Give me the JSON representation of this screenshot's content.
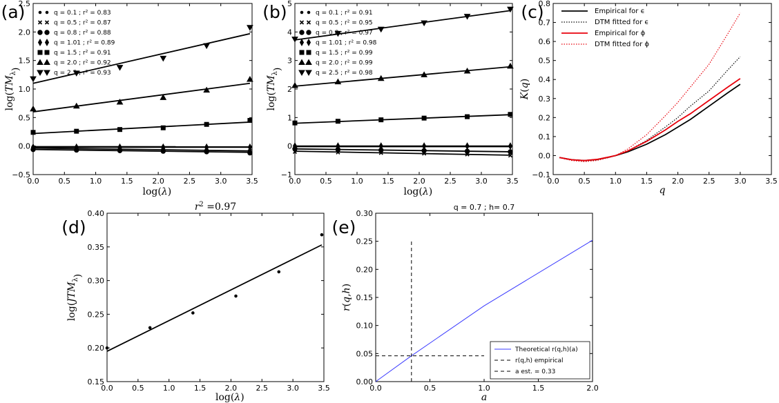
{
  "chart_data": [
    {
      "panel": "(a)",
      "type": "scatter",
      "xlabel": "log(λ)",
      "ylabel": "log(TM_λ)",
      "xlim": [
        0,
        3.5
      ],
      "ylim": [
        -0.5,
        2.5
      ],
      "xticks": [
        "0.0",
        "0.5",
        "1.0",
        "1.5",
        "2.0",
        "2.5",
        "3.0",
        "3.5"
      ],
      "yticks": [
        "−0.5",
        "0.0",
        "0.5",
        "1.0",
        "1.5",
        "2.0",
        "2.5"
      ],
      "x": [
        0,
        0.693,
        1.386,
        2.079,
        2.773,
        3.466
      ],
      "series": [
        {
          "name": "q = 0.1 ;  r² = 0.83",
          "marker": "dot",
          "values": [
            -0.01,
            -0.01,
            -0.01,
            -0.01,
            -0.01,
            -0.01
          ],
          "fit": [
            -0.01,
            -0.012
          ]
        },
        {
          "name": "q = 0.5 ;  r² = 0.87",
          "marker": "x",
          "values": [
            -0.04,
            -0.05,
            -0.06,
            -0.07,
            -0.08,
            -0.09
          ],
          "fit": [
            -0.035,
            -0.085
          ]
        },
        {
          "name": "q = 0.8 ;  r² = 0.88",
          "marker": "circle",
          "values": [
            -0.06,
            -0.07,
            -0.08,
            -0.09,
            -0.1,
            -0.12
          ],
          "fit": [
            -0.06,
            -0.11
          ]
        },
        {
          "name": "q = 1.01 ;  r² = 0.89",
          "marker": "diamond",
          "values": [
            -0.02,
            -0.02,
            -0.02,
            -0.02,
            -0.02,
            -0.02
          ],
          "fit": [
            -0.02,
            -0.02
          ]
        },
        {
          "name": "q = 1.5 ;  r² = 0.91",
          "marker": "square",
          "values": [
            0.24,
            0.26,
            0.29,
            0.32,
            0.38,
            0.45
          ],
          "fit": [
            0.22,
            0.42
          ]
        },
        {
          "name": "q = 2.0 ;  r² = 0.92",
          "marker": "triangle-up",
          "values": [
            0.65,
            0.7,
            0.77,
            0.85,
            0.98,
            1.17
          ],
          "fit": [
            0.6,
            1.1
          ]
        },
        {
          "name": "q = 2.5 ;  r² = 0.93",
          "marker": "triangle-down",
          "values": [
            1.18,
            1.28,
            1.38,
            1.54,
            1.76,
            2.08
          ],
          "fit": [
            1.1,
            1.97
          ]
        }
      ]
    },
    {
      "panel": "(b)",
      "type": "scatter",
      "xlabel": "log(λ)",
      "ylabel": "log(TM_λ)",
      "xlim": [
        0,
        3.5
      ],
      "ylim": [
        -1,
        5
      ],
      "xticks": [
        "0.0",
        "0.5",
        "1.0",
        "1.5",
        "2.0",
        "2.5",
        "3.0",
        "3.5"
      ],
      "yticks": [
        "−1",
        "0",
        "1",
        "2",
        "3",
        "4",
        "5"
      ],
      "x": [
        0,
        0.693,
        1.386,
        2.079,
        2.773,
        3.466
      ],
      "series": [
        {
          "name": "q = 0.1 ;  r² = 0.91",
          "marker": "dot",
          "values": [
            -0.02,
            -0.02,
            -0.02,
            -0.02,
            -0.02,
            -0.02
          ],
          "fit": [
            -0.02,
            -0.02
          ]
        },
        {
          "name": "q = 0.5 ;  r² = 0.95",
          "marker": "x",
          "values": [
            -0.2,
            -0.22,
            -0.24,
            -0.26,
            -0.29,
            -0.33
          ],
          "fit": [
            -0.18,
            -0.32
          ]
        },
        {
          "name": "q = 0.8 ;  r² = 0.97",
          "marker": "circle",
          "values": [
            -0.1,
            -0.12,
            -0.14,
            -0.16,
            -0.18,
            -0.2
          ],
          "fit": [
            -0.1,
            -0.2
          ]
        },
        {
          "name": "q = 1.01 ;  r² = 0.98",
          "marker": "diamond",
          "values": [
            0.0,
            0.0,
            0.0,
            0.0,
            0.0,
            0.0
          ],
          "fit": [
            0.0,
            0.0
          ]
        },
        {
          "name": "q = 1.5 ;  r² = 0.99",
          "marker": "square",
          "values": [
            0.81,
            0.87,
            0.92,
            0.98,
            1.03,
            1.11
          ],
          "fit": [
            0.8,
            1.1
          ]
        },
        {
          "name": "q = 2.0 ;  r² = 0.99",
          "marker": "triangle-up",
          "values": [
            2.12,
            2.25,
            2.37,
            2.5,
            2.63,
            2.8
          ],
          "fit": [
            2.1,
            2.78
          ]
        },
        {
          "name": "q = 2.5 ;  r² = 0.98",
          "marker": "triangle-down",
          "values": [
            3.75,
            3.95,
            4.1,
            4.32,
            4.55,
            4.8
          ],
          "fit": [
            3.72,
            4.75
          ]
        }
      ]
    },
    {
      "panel": "(c)",
      "type": "line",
      "xlabel": "q",
      "ylabel": "K(q)",
      "xlim": [
        0,
        3.5
      ],
      "ylim": [
        -0.1,
        0.8
      ],
      "xticks": [
        "0.0",
        "0.5",
        "1.0",
        "1.5",
        "2.0",
        "2.5",
        "3.0",
        "3.5"
      ],
      "yticks": [
        "−0.1",
        "0.0",
        "0.1",
        "0.2",
        "0.3",
        "0.4",
        "0.5",
        "0.6",
        "0.7",
        "0.8"
      ],
      "x": [
        0.1,
        0.3,
        0.5,
        0.7,
        0.9,
        1.0,
        1.2,
        1.5,
        1.8,
        2.0,
        2.2,
        2.5,
        2.8,
        3.0
      ],
      "series": [
        {
          "name": "Empirical for ϵ",
          "color": "#000000",
          "style": "solid",
          "values": [
            -0.01,
            -0.022,
            -0.026,
            -0.021,
            -0.008,
            0.0,
            0.02,
            0.06,
            0.11,
            0.15,
            0.19,
            0.26,
            0.33,
            0.375
          ]
        },
        {
          "name": "DTM fitted for ϵ",
          "color": "#000000",
          "style": "dotted",
          "values": [
            -0.011,
            -0.025,
            -0.03,
            -0.024,
            -0.009,
            0.0,
            0.025,
            0.08,
            0.15,
            0.2,
            0.26,
            0.34,
            0.45,
            0.52
          ]
        },
        {
          "name": "Empirical for ϕ",
          "color": "#e8000b",
          "style": "solid",
          "values": [
            -0.01,
            -0.022,
            -0.026,
            -0.02,
            -0.007,
            0.0,
            0.025,
            0.075,
            0.135,
            0.18,
            0.22,
            0.29,
            0.36,
            0.405
          ]
        },
        {
          "name": "DTM fitted for ϕ",
          "color": "#e8000b",
          "style": "dotted",
          "values": [
            -0.011,
            -0.026,
            -0.032,
            -0.026,
            -0.01,
            0.0,
            0.035,
            0.11,
            0.21,
            0.28,
            0.36,
            0.48,
            0.64,
            0.75
          ]
        }
      ]
    },
    {
      "panel": "(d)",
      "type": "scatter",
      "title": "r² =0.97",
      "xlabel": "log(λ)",
      "ylabel": "log(JTM_λ)",
      "xlim": [
        0,
        3.5
      ],
      "ylim": [
        0.15,
        0.4
      ],
      "xticks": [
        "0.0",
        "0.5",
        "1.0",
        "1.5",
        "2.0",
        "2.5",
        "3.0",
        "3.5"
      ],
      "yticks": [
        "0.15",
        "0.20",
        "0.25",
        "0.30",
        "0.35",
        "0.40"
      ],
      "x": [
        0,
        0.693,
        1.386,
        2.079,
        2.773,
        3.466
      ],
      "values": [
        0.2,
        0.23,
        0.252,
        0.277,
        0.313,
        0.368
      ],
      "fit": [
        0.195,
        0.353
      ]
    },
    {
      "panel": "(e)",
      "type": "line",
      "title": "q = 0.7 ; h= 0.7",
      "xlabel": "a",
      "ylabel": "r(q,h)",
      "xlim": [
        0,
        2.0
      ],
      "ylim": [
        0,
        0.3
      ],
      "xticks": [
        "0.0",
        "0.5",
        "1.0",
        "1.5",
        "2.0"
      ],
      "yticks": [
        "0.00",
        "0.05",
        "0.10",
        "0.15",
        "0.20",
        "0.25",
        "0.30"
      ],
      "theoretical": {
        "x": [
          0,
          0.33,
          1.0,
          2.0
        ],
        "y": [
          0,
          0.046,
          0.135,
          0.252
        ]
      },
      "r_empirical": 0.046,
      "a_est": 0.33,
      "legend": [
        "Theoretical r(q,h)(a)",
        "r(q,h) empirical",
        "a est. = 0.33"
      ]
    }
  ]
}
